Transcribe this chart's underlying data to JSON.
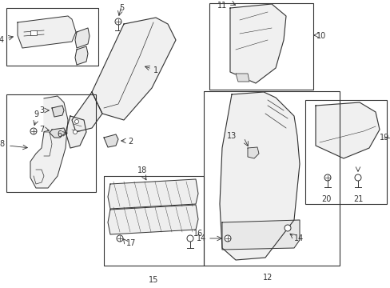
{
  "bg_color": "#ffffff",
  "line_color": "#333333",
  "box_color": "#333333",
  "fig_width": 4.89,
  "fig_height": 3.6,
  "dpi": 100
}
